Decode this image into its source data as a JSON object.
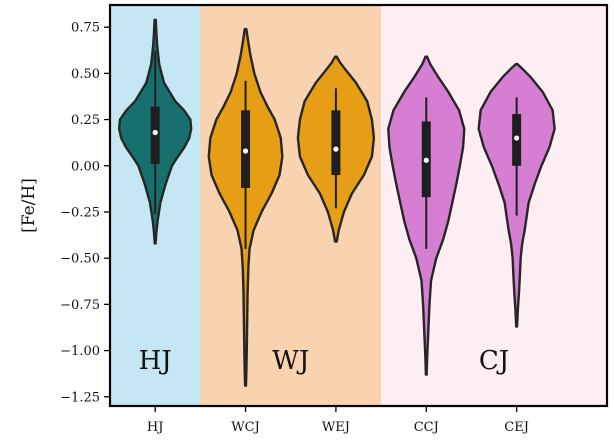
{
  "chart_data": {
    "type": "violin",
    "ylabel": "[Fe/H]",
    "xlabel": "",
    "ylim": [
      -1.3,
      0.87
    ],
    "yticks": [
      {
        "v": 0.75,
        "label": "0.75"
      },
      {
        "v": 0.5,
        "label": "0.50"
      },
      {
        "v": 0.25,
        "label": "0.25"
      },
      {
        "v": 0.0,
        "label": "0.00"
      },
      {
        "v": -0.25,
        "label": "−0.25"
      },
      {
        "v": -0.5,
        "label": "−0.50"
      },
      {
        "v": -0.75,
        "label": "−0.75"
      },
      {
        "v": -1.0,
        "label": "−1.00"
      },
      {
        "v": -1.25,
        "label": "−1.25"
      }
    ],
    "categories": [
      "HJ",
      "WCJ",
      "WEJ",
      "CCJ",
      "CEJ"
    ],
    "regions": [
      {
        "label": "HJ",
        "from": -0.5,
        "to": 0.5,
        "color": "#c5e6f3"
      },
      {
        "label": "WJ",
        "from": 0.5,
        "to": 2.5,
        "color": "#f9d2b0"
      },
      {
        "label": "CJ",
        "from": 2.5,
        "to": 5.0,
        "color": "#fdeef3"
      }
    ],
    "region_label_y": -1.05,
    "xlim": [
      -0.5,
      5.0
    ],
    "series": [
      {
        "category": "HJ",
        "color": "#17706d",
        "median": 0.18,
        "q1": 0.01,
        "q3": 0.32,
        "whisker_low": -0.26,
        "whisker_high": 0.62,
        "profile": [
          [
            -0.42,
            0.01
          ],
          [
            -0.36,
            0.03
          ],
          [
            -0.3,
            0.06
          ],
          [
            -0.2,
            0.13
          ],
          [
            -0.1,
            0.26
          ],
          [
            0.0,
            0.42
          ],
          [
            0.05,
            0.57
          ],
          [
            0.1,
            0.73
          ],
          [
            0.15,
            0.85
          ],
          [
            0.2,
            0.9
          ],
          [
            0.25,
            0.88
          ],
          [
            0.3,
            0.72
          ],
          [
            0.35,
            0.5
          ],
          [
            0.45,
            0.22
          ],
          [
            0.55,
            0.1
          ],
          [
            0.65,
            0.05
          ],
          [
            0.72,
            0.03
          ],
          [
            0.79,
            0.015
          ]
        ]
      },
      {
        "category": "WCJ",
        "color": "#e59e15",
        "median": 0.08,
        "q1": -0.12,
        "q3": 0.3,
        "whisker_low": -0.45,
        "whisker_high": 0.46,
        "profile": [
          [
            -1.19,
            0.01
          ],
          [
            -1.12,
            0.02
          ],
          [
            -1.0,
            0.03
          ],
          [
            -0.85,
            0.04
          ],
          [
            -0.7,
            0.05
          ],
          [
            -0.55,
            0.07
          ],
          [
            -0.45,
            0.1
          ],
          [
            -0.35,
            0.2
          ],
          [
            -0.25,
            0.4
          ],
          [
            -0.15,
            0.65
          ],
          [
            -0.05,
            0.85
          ],
          [
            0.05,
            0.92
          ],
          [
            0.15,
            0.88
          ],
          [
            0.25,
            0.73
          ],
          [
            0.32,
            0.55
          ],
          [
            0.4,
            0.37
          ],
          [
            0.5,
            0.22
          ],
          [
            0.6,
            0.12
          ],
          [
            0.68,
            0.06
          ],
          [
            0.74,
            0.02
          ]
        ]
      },
      {
        "category": "WEJ",
        "color": "#e59e15",
        "median": 0.09,
        "q1": -0.05,
        "q3": 0.3,
        "whisker_low": -0.23,
        "whisker_high": 0.42,
        "profile": [
          [
            -0.41,
            0.02
          ],
          [
            -0.35,
            0.07
          ],
          [
            -0.25,
            0.2
          ],
          [
            -0.15,
            0.4
          ],
          [
            -0.05,
            0.7
          ],
          [
            0.05,
            0.9
          ],
          [
            0.15,
            0.95
          ],
          [
            0.25,
            0.9
          ],
          [
            0.35,
            0.78
          ],
          [
            0.45,
            0.5
          ],
          [
            0.52,
            0.24
          ],
          [
            0.56,
            0.1
          ],
          [
            0.59,
            0.02
          ]
        ]
      },
      {
        "category": "CCJ",
        "color": "#d67fd2",
        "median": 0.03,
        "q1": -0.17,
        "q3": 0.24,
        "whisker_low": -0.45,
        "whisker_high": 0.37,
        "profile": [
          [
            -1.13,
            0.01
          ],
          [
            -1.05,
            0.02
          ],
          [
            -0.95,
            0.04
          ],
          [
            -0.85,
            0.06
          ],
          [
            -0.75,
            0.08
          ],
          [
            -0.62,
            0.12
          ],
          [
            -0.5,
            0.25
          ],
          [
            -0.4,
            0.42
          ],
          [
            -0.3,
            0.55
          ],
          [
            -0.2,
            0.65
          ],
          [
            -0.1,
            0.75
          ],
          [
            0.0,
            0.84
          ],
          [
            0.1,
            0.92
          ],
          [
            0.2,
            0.95
          ],
          [
            0.3,
            0.82
          ],
          [
            0.4,
            0.55
          ],
          [
            0.48,
            0.3
          ],
          [
            0.55,
            0.1
          ],
          [
            0.59,
            0.02
          ]
        ]
      },
      {
        "category": "CEJ",
        "color": "#d67fd2",
        "median": 0.15,
        "q1": 0.0,
        "q3": 0.28,
        "whisker_low": -0.27,
        "whisker_high": 0.37,
        "profile": [
          [
            -0.87,
            0.01
          ],
          [
            -0.78,
            0.03
          ],
          [
            -0.68,
            0.06
          ],
          [
            -0.6,
            0.08
          ],
          [
            -0.5,
            0.1
          ],
          [
            -0.42,
            0.14
          ],
          [
            -0.35,
            0.2
          ],
          [
            -0.2,
            0.3
          ],
          [
            -0.1,
            0.45
          ],
          [
            0.0,
            0.62
          ],
          [
            0.1,
            0.82
          ],
          [
            0.2,
            0.95
          ],
          [
            0.3,
            0.9
          ],
          [
            0.4,
            0.65
          ],
          [
            0.48,
            0.35
          ],
          [
            0.53,
            0.12
          ],
          [
            0.55,
            0.02
          ]
        ]
      }
    ]
  }
}
